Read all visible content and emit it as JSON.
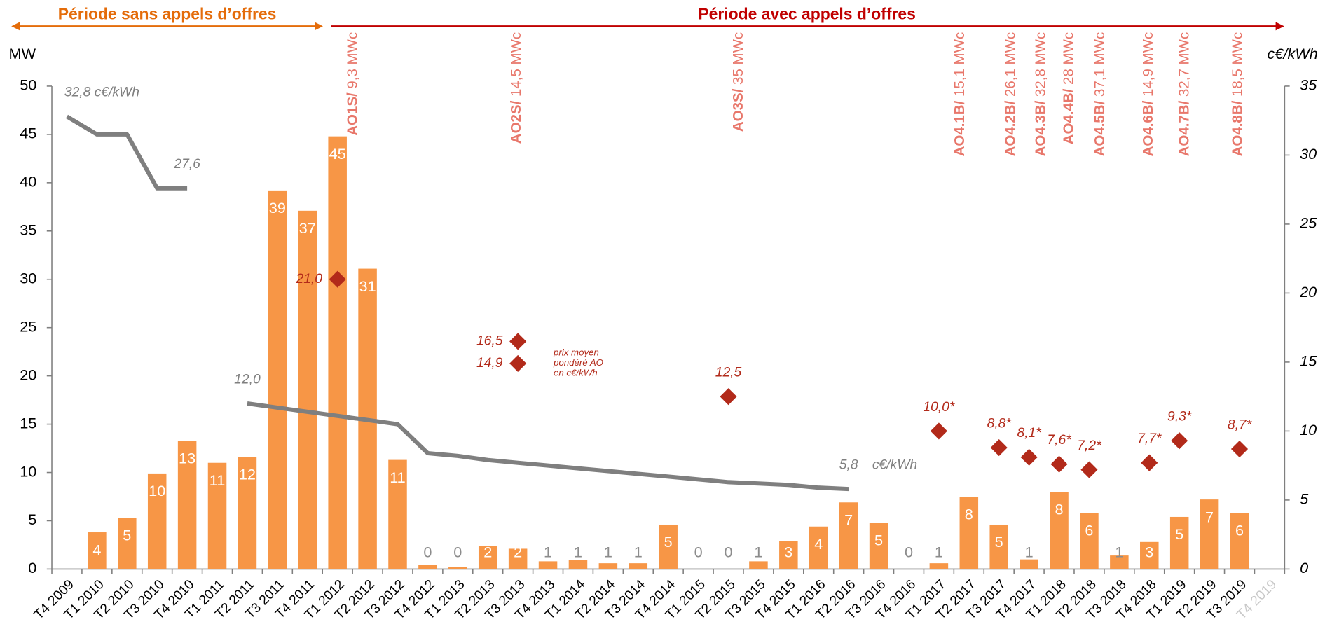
{
  "chart_data": {
    "type": "bar",
    "period_labels": [
      "Période sans appels d’offres",
      "Période avec appels d’offres"
    ],
    "period_colors": [
      "#e46c0a",
      "#c00000"
    ],
    "y_label": "MW",
    "y2_label": "c€/kWh",
    "categories": [
      "T4 2009",
      "T1 2010",
      "T2 2010",
      "T3 2010",
      "T4 2010",
      "T1 2011",
      "T2 2011",
      "T3 2011",
      "T4 2011",
      "T1 2012",
      "T2 2012",
      "T3 2012",
      "T4 2012",
      "T1 2013",
      "T2 2013",
      "T3 2013",
      "T4 2013",
      "T1 2014",
      "T2 2014",
      "T3 2014",
      "T4 2014",
      "T1 2015",
      "T2 2015",
      "T3 2015",
      "T4 2015",
      "T1 2016",
      "T2 2016",
      "T3 2016",
      "T4 2016",
      "T1 2017",
      "T2 2017",
      "T3 2017",
      "T4 2017",
      "T1 2018",
      "T2 2018",
      "T3 2018",
      "T4 2018",
      "T1 2019",
      "T2 2019",
      "T3 2019",
      "T4 2019"
    ],
    "ylim": [
      0,
      50
    ],
    "yticks": [
      0,
      5,
      10,
      15,
      20,
      25,
      30,
      35,
      40,
      45,
      50
    ],
    "y2lim": [
      0,
      35
    ],
    "y2ticks": [
      0,
      5,
      10,
      15,
      20,
      25,
      30,
      35
    ],
    "series": [
      {
        "type": "bar",
        "color": "#f79646",
        "values": [
          null,
          3.8,
          5.3,
          9.9,
          13.3,
          11.0,
          11.6,
          39.2,
          37.1,
          44.8,
          31.1,
          11.3,
          0.4,
          0.2,
          2.4,
          2.1,
          0.8,
          0.9,
          0.6,
          0.6,
          4.6,
          0,
          0,
          0.8,
          2.9,
          4.4,
          6.9,
          4.8,
          0,
          0.6,
          7.5,
          4.6,
          1.0,
          8.0,
          5.8,
          1.4,
          2.8,
          5.4,
          7.2,
          5.8,
          null
        ],
        "value_labels": [
          null,
          "4",
          "5",
          "10",
          "13",
          "11",
          "12",
          "39",
          "37",
          "45",
          "31",
          "11",
          "0",
          "0",
          "2",
          "2",
          "1",
          "1",
          "1",
          "1",
          "5",
          "0",
          "0",
          "1",
          "3",
          "4",
          "7",
          "5",
          "0",
          "1",
          "8",
          "5",
          "1",
          "8",
          "6",
          "1",
          "3",
          "5",
          "7",
          "6",
          null
        ]
      },
      {
        "type": "line",
        "axis": "y2",
        "color": "#7f7f7f",
        "values": [
          32.8,
          31.5,
          31.5,
          27.6,
          27.6,
          null,
          12.0,
          11.7,
          11.4,
          11.1,
          10.8,
          10.5,
          8.4,
          8.2,
          7.9,
          7.7,
          7.5,
          7.3,
          7.1,
          6.9,
          6.7,
          6.5,
          6.3,
          6.2,
          6.1,
          5.9,
          5.8,
          null,
          null,
          null,
          null,
          null,
          null,
          null,
          null,
          null,
          null,
          null,
          null,
          null,
          null
        ],
        "value_labels": [
          "32,8 c€/kWh",
          null,
          null,
          null,
          "27,6",
          null,
          "12,0",
          null,
          null,
          null,
          null,
          null,
          null,
          null,
          null,
          null,
          null,
          null,
          null,
          null,
          null,
          null,
          null,
          null,
          null,
          null,
          "5,8",
          null,
          null,
          null,
          null,
          null,
          null,
          null,
          null,
          null,
          null,
          null,
          null,
          null,
          null
        ]
      },
      {
        "type": "scatter",
        "marker": "diamond",
        "axis": "y2",
        "color": "#b22a1a",
        "values": [
          null,
          null,
          null,
          null,
          null,
          null,
          null,
          null,
          null,
          21.0,
          null,
          null,
          null,
          null,
          null,
          16.5,
          null,
          null,
          null,
          null,
          null,
          null,
          12.5,
          null,
          null,
          null,
          null,
          null,
          null,
          10.0,
          null,
          8.8,
          8.1,
          7.6,
          7.2,
          null,
          7.7,
          9.3,
          null,
          8.7,
          null
        ],
        "value_labels": [
          null,
          null,
          null,
          null,
          null,
          null,
          null,
          null,
          null,
          "21,0",
          null,
          null,
          null,
          null,
          null,
          "16,5",
          null,
          null,
          null,
          null,
          null,
          null,
          "12,5",
          null,
          null,
          null,
          null,
          null,
          null,
          "10,0*",
          null,
          "8,8*",
          "8,1*",
          "7,6*",
          "7,2*",
          null,
          "7,7*",
          "9,3*",
          null,
          "8,7*",
          null
        ]
      },
      {
        "type": "scatter",
        "marker": "diamond",
        "axis": "y2",
        "color": "#b22a1a",
        "values": [
          null,
          null,
          null,
          null,
          null,
          null,
          null,
          null,
          null,
          null,
          null,
          null,
          null,
          null,
          null,
          14.9,
          null,
          null,
          null,
          null,
          null,
          null,
          null,
          null,
          null,
          null,
          null,
          null,
          null,
          null,
          null,
          null,
          null,
          null,
          null,
          null,
          null,
          null,
          null,
          null,
          null
        ],
        "value_labels": [
          null,
          null,
          null,
          null,
          null,
          null,
          null,
          null,
          null,
          null,
          null,
          null,
          null,
          null,
          null,
          "14,9",
          null,
          null,
          null,
          null,
          null,
          null,
          null,
          null,
          null,
          null,
          null,
          null,
          null,
          null,
          null,
          null,
          null,
          null,
          null,
          null,
          null,
          null,
          null,
          null,
          null
        ]
      }
    ],
    "line_unit_label": "c€/kWh",
    "note": [
      "prix moyen",
      "pondéré AO",
      "en c€/kWh"
    ],
    "annotations": [
      {
        "label": "AO1S/",
        "detail": "9,3 MWc"
      },
      {
        "label": "AO2S/",
        "detail": "14,5 MWc"
      },
      {
        "label": "AO3S/",
        "detail": "35 MWc"
      },
      {
        "label": "AO4.1B/",
        "detail": "15,1 MWc"
      },
      {
        "label": "AO4.2B/",
        "detail": "26,1 MWc"
      },
      {
        "label": "AO4.3B/",
        "detail": "32,8 MWc"
      },
      {
        "label": "AO4.4B/",
        "detail": "28 MWc"
      },
      {
        "label": "AO4.5B/",
        "detail": "37,1 MWc"
      },
      {
        "label": "AO4.6B/",
        "detail": "14,9 MWc"
      },
      {
        "label": "AO4.7B/",
        "detail": "32,7 MWc"
      },
      {
        "label": "AO4.8B/",
        "detail": "18,5 MWc"
      }
    ]
  }
}
